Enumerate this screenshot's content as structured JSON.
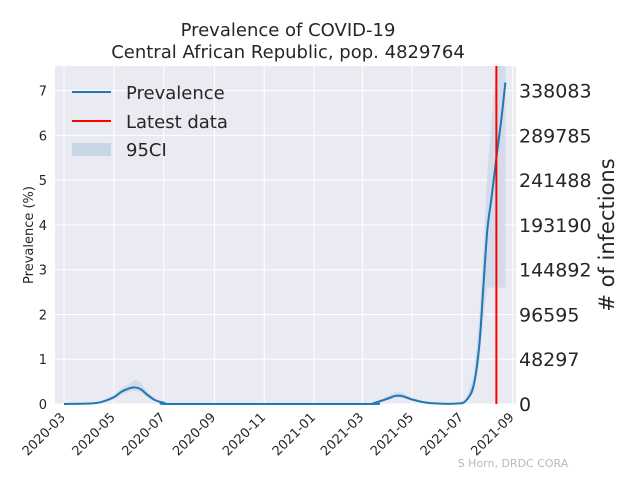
{
  "chart_data": {
    "type": "line",
    "title_lines": [
      "Prevalence of COVID-19",
      "Central African Republic, pop. 4829764"
    ],
    "ylabel": "Prevalence (%)",
    "ylabel_right": "# of infections",
    "credit": "S Horn, DRDC CORA",
    "x_ticks": [
      "2020-03",
      "2020-05",
      "2020-07",
      "2020-09",
      "2020-11",
      "2021-01",
      "2021-03",
      "2021-05",
      "2021-07",
      "2021-09"
    ],
    "y_ticks": [
      "0",
      "1",
      "2",
      "3",
      "4",
      "5",
      "6",
      "7"
    ],
    "y_ticks_right": [
      "0",
      "48297",
      "96595",
      "144892",
      "193190",
      "241488",
      "289785",
      "338083"
    ],
    "ylim": [
      0,
      7.55
    ],
    "xlim": [
      "2020-02-19",
      "2021-09-05"
    ],
    "grid": true,
    "legend_position": "top-left",
    "legend": [
      "Prevalence",
      "Latest data",
      "95CI"
    ],
    "colors": {
      "prevalence": "#1f77b4",
      "latest": "#ff0000",
      "ci": "#c9d6e6",
      "background": "#eaeaf2",
      "grid": "#ffffff"
    },
    "latest_data_date": "2021-08-12",
    "series": [
      {
        "name": "Prevalence",
        "points": [
          [
            "2020-03-01",
            0.0
          ],
          [
            "2020-04-01",
            0.01
          ],
          [
            "2020-04-15",
            0.04
          ],
          [
            "2020-05-01",
            0.15
          ],
          [
            "2020-05-10",
            0.27
          ],
          [
            "2020-05-20",
            0.35
          ],
          [
            "2020-05-27",
            0.37
          ],
          [
            "2020-06-03",
            0.33
          ],
          [
            "2020-06-10",
            0.22
          ],
          [
            "2020-06-20",
            0.09
          ],
          [
            "2020-07-01",
            0.03
          ],
          [
            "2020-07-20",
            0.0
          ],
          [
            "2021-03-01",
            0.0
          ],
          [
            "2021-03-15",
            0.02
          ],
          [
            "2021-04-01",
            0.12
          ],
          [
            "2021-04-10",
            0.18
          ],
          [
            "2021-04-18",
            0.18
          ],
          [
            "2021-05-01",
            0.1
          ],
          [
            "2021-05-15",
            0.04
          ],
          [
            "2021-06-01",
            0.01
          ],
          [
            "2021-06-25",
            0.01
          ],
          [
            "2021-07-05",
            0.06
          ],
          [
            "2021-07-15",
            0.4
          ],
          [
            "2021-07-22",
            1.3
          ],
          [
            "2021-07-27",
            2.6
          ],
          [
            "2021-08-01",
            3.9
          ],
          [
            "2021-08-06",
            4.6
          ],
          [
            "2021-08-12",
            5.5
          ],
          [
            "2021-08-18",
            6.35
          ],
          [
            "2021-08-23",
            7.18
          ]
        ]
      },
      {
        "name": "95CI",
        "points": [
          [
            "2020-03-01",
            0.0,
            0.0
          ],
          [
            "2020-04-01",
            0.0,
            0.02
          ],
          [
            "2020-04-15",
            0.02,
            0.06
          ],
          [
            "2020-05-01",
            0.1,
            0.2
          ],
          [
            "2020-05-10",
            0.2,
            0.35
          ],
          [
            "2020-05-20",
            0.28,
            0.45
          ],
          [
            "2020-05-27",
            0.3,
            0.55
          ],
          [
            "2020-06-03",
            0.26,
            0.48
          ],
          [
            "2020-06-10",
            0.16,
            0.3
          ],
          [
            "2020-06-20",
            0.06,
            0.13
          ],
          [
            "2020-07-01",
            0.01,
            0.05
          ],
          [
            "2020-07-20",
            0.0,
            0.01
          ],
          [
            "2021-03-01",
            0.0,
            0.0
          ],
          [
            "2021-03-15",
            0.01,
            0.04
          ],
          [
            "2021-04-01",
            0.08,
            0.17
          ],
          [
            "2021-04-10",
            0.14,
            0.26
          ],
          [
            "2021-04-18",
            0.14,
            0.26
          ],
          [
            "2021-05-01",
            0.07,
            0.14
          ],
          [
            "2021-05-15",
            0.02,
            0.06
          ],
          [
            "2021-06-01",
            0.0,
            0.02
          ],
          [
            "2021-06-25",
            0.0,
            0.02
          ],
          [
            "2021-07-05",
            0.03,
            0.1
          ],
          [
            "2021-07-15",
            0.25,
            0.6
          ],
          [
            "2021-07-22",
            0.9,
            1.9
          ],
          [
            "2021-07-27",
            1.9,
            3.4
          ],
          [
            "2021-08-01",
            2.6,
            5.2
          ],
          [
            "2021-08-06",
            2.6,
            6.3
          ],
          [
            "2021-08-12",
            2.6,
            7.55
          ],
          [
            "2021-08-18",
            2.6,
            7.55
          ],
          [
            "2021-08-23",
            2.6,
            7.55
          ]
        ]
      }
    ]
  }
}
